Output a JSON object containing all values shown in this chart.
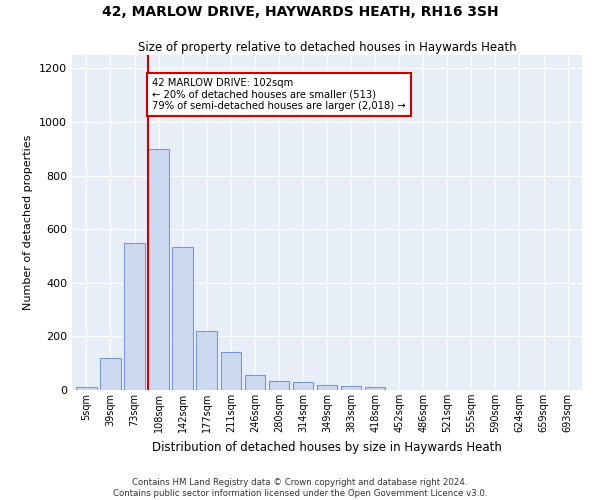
{
  "title": "42, MARLOW DRIVE, HAYWARDS HEATH, RH16 3SH",
  "subtitle": "Size of property relative to detached houses in Haywards Heath",
  "xlabel": "Distribution of detached houses by size in Haywards Heath",
  "ylabel": "Number of detached properties",
  "bin_labels": [
    "5sqm",
    "39sqm",
    "73sqm",
    "108sqm",
    "142sqm",
    "177sqm",
    "211sqm",
    "246sqm",
    "280sqm",
    "314sqm",
    "349sqm",
    "383sqm",
    "418sqm",
    "452sqm",
    "486sqm",
    "521sqm",
    "555sqm",
    "590sqm",
    "624sqm",
    "659sqm",
    "693sqm"
  ],
  "bar_heights": [
    10,
    120,
    550,
    900,
    535,
    220,
    140,
    55,
    35,
    30,
    20,
    15,
    10,
    0,
    0,
    0,
    0,
    0,
    0,
    0,
    0
  ],
  "bar_color": "#ccd9f0",
  "bar_edge_color": "#7799cc",
  "annotation_line1": "42 MARLOW DRIVE: 102sqm",
  "annotation_line2": "← 20% of detached houses are smaller (513)",
  "annotation_line3": "79% of semi-detached houses are larger (2,018) →",
  "annotation_box_color": "#ffffff",
  "annotation_box_edge": "#cc0000",
  "marker_line_color": "#cc0000",
  "marker_bar_index": 3,
  "ylim": [
    0,
    1250
  ],
  "yticks": [
    0,
    200,
    400,
    600,
    800,
    1000,
    1200
  ],
  "bg_color": "#e8eef8",
  "grid_color": "#ffffff",
  "footnote1": "Contains HM Land Registry data © Crown copyright and database right 2024.",
  "footnote2": "Contains public sector information licensed under the Open Government Licence v3.0."
}
